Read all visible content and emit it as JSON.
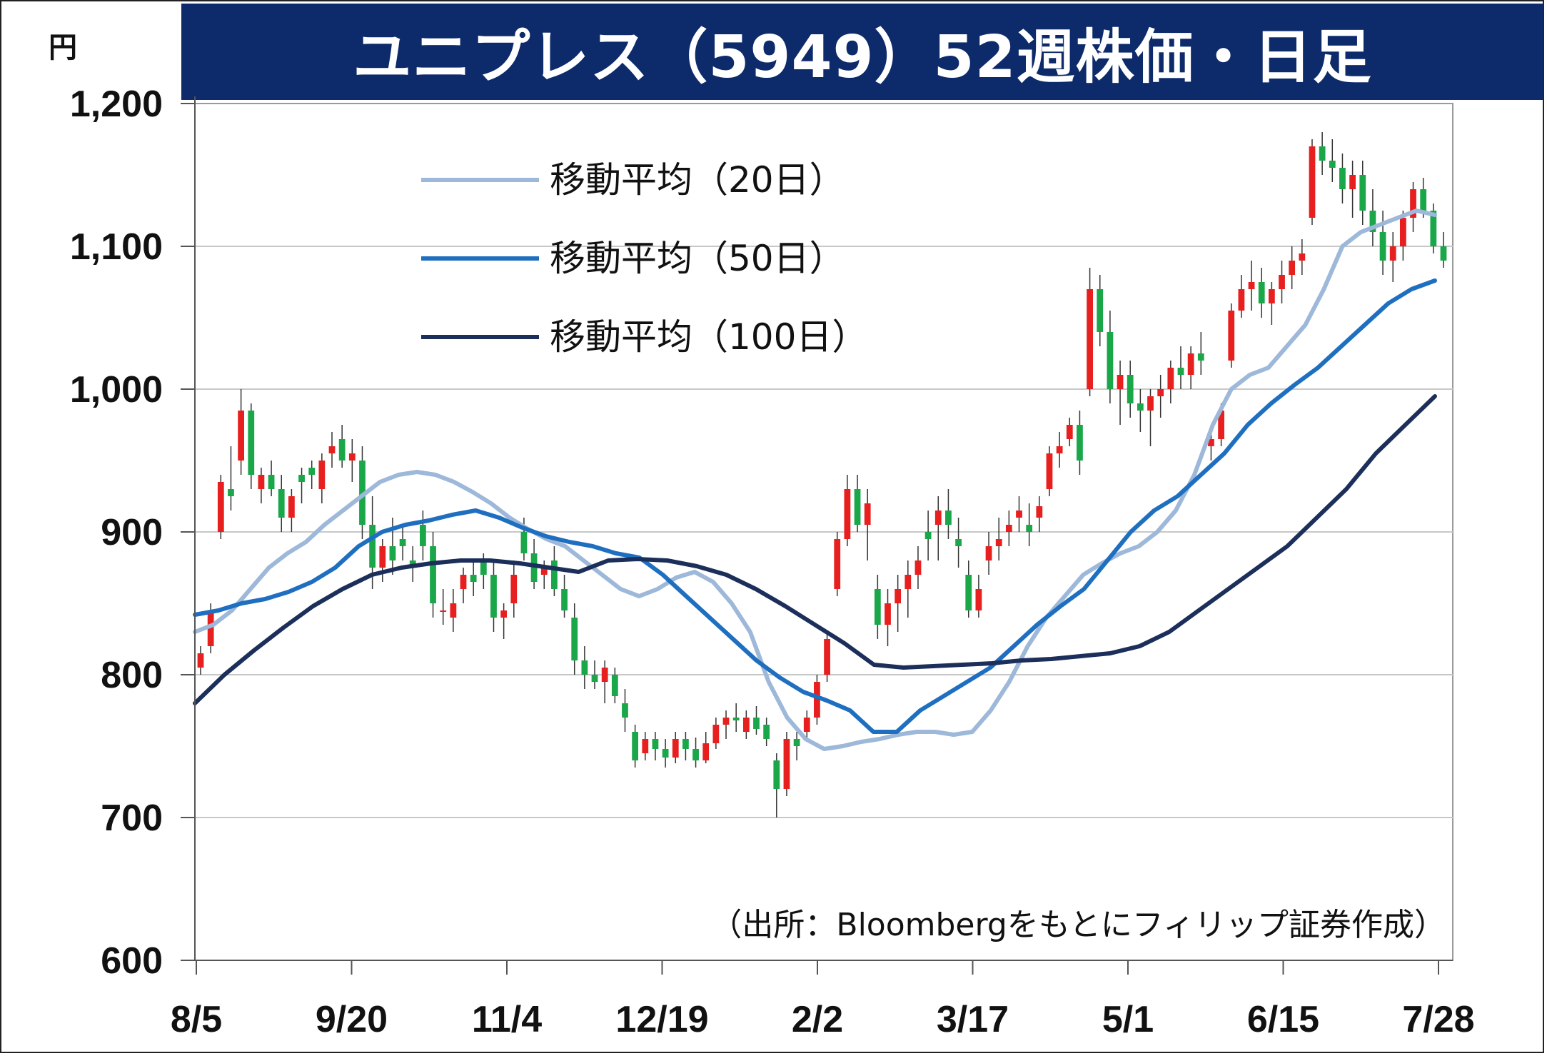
{
  "title": "ユニプレス（5949）52週株価・日足",
  "chart_data": {
    "type": "candlestick",
    "title": "ユニプレス（5949）52週株価・日足",
    "y_unit": "円",
    "ylim": [
      600,
      1200
    ],
    "yticks": [
      600,
      700,
      800,
      900,
      1000,
      1100,
      1200
    ],
    "ytick_labels": [
      "600",
      "700",
      "800",
      "900",
      "1,000",
      "1,100",
      "1,200"
    ],
    "xtick_labels": [
      "8/5",
      "9/20",
      "11/4",
      "12/19",
      "2/2",
      "3/17",
      "5/1",
      "6/15",
      "7/28"
    ],
    "grid": true,
    "legend_position": "top-left",
    "source_note": "（出所：Bloombergをもとにフィリップ証券作成）",
    "colors": {
      "up": "#e81f1f",
      "down": "#1aa74a",
      "ma20": "#9db8d9",
      "ma50": "#1f6fc0",
      "ma100": "#1b2f5a",
      "title_bg": "#0d2a6b",
      "grid": "#c8c8c8"
    },
    "series": [
      {
        "name": "移動平均（20日）",
        "values": [
          830,
          835,
          845,
          860,
          875,
          885,
          893,
          905,
          915,
          925,
          935,
          940,
          942,
          940,
          935,
          928,
          920,
          910,
          902,
          895,
          890,
          880,
          870,
          860,
          855,
          860,
          868,
          872,
          865,
          850,
          830,
          795,
          770,
          755,
          748,
          750,
          753,
          755,
          758,
          760,
          760,
          758,
          760,
          775,
          795,
          820,
          840,
          855,
          870,
          878,
          885,
          890,
          900,
          915,
          940,
          975,
          1000,
          1010,
          1015,
          1030,
          1045,
          1070,
          1100,
          1110,
          1115,
          1120,
          1125,
          1122
        ]
      },
      {
        "name": "移動平均（50日）",
        "values": [
          842,
          845,
          850,
          853,
          858,
          865,
          875,
          890,
          900,
          905,
          908,
          912,
          915,
          910,
          903,
          897,
          893,
          890,
          885,
          882,
          870,
          855,
          840,
          825,
          810,
          798,
          788,
          782,
          775,
          760,
          760,
          775,
          785,
          795,
          805,
          820,
          835,
          848,
          860,
          880,
          900,
          915,
          925,
          940,
          955,
          975,
          990,
          1003,
          1015,
          1030,
          1045,
          1060,
          1070,
          1076
        ]
      },
      {
        "name": "移動平均（100日）",
        "values": [
          780,
          800,
          817,
          833,
          848,
          860,
          870,
          875,
          878,
          880,
          880,
          878,
          875,
          872,
          880,
          881,
          880,
          876,
          870,
          860,
          848,
          835,
          822,
          807,
          805,
          806,
          807,
          808,
          810,
          811,
          813,
          815,
          820,
          830,
          845,
          860,
          875,
          890,
          910,
          930,
          955,
          975,
          995
        ]
      }
    ],
    "candles_ohlc": [
      [
        805,
        820,
        800,
        815
      ],
      [
        820,
        850,
        815,
        845
      ],
      [
        900,
        940,
        895,
        935
      ],
      [
        930,
        960,
        915,
        925
      ],
      [
        950,
        1000,
        940,
        985
      ],
      [
        985,
        990,
        930,
        940
      ],
      [
        930,
        945,
        920,
        940
      ],
      [
        940,
        950,
        925,
        930
      ],
      [
        930,
        940,
        900,
        910
      ],
      [
        910,
        930,
        900,
        925
      ],
      [
        940,
        945,
        920,
        935
      ],
      [
        945,
        950,
        930,
        940
      ],
      [
        930,
        955,
        920,
        950
      ],
      [
        955,
        970,
        945,
        960
      ],
      [
        965,
        975,
        945,
        950
      ],
      [
        950,
        965,
        935,
        955
      ],
      [
        950,
        960,
        895,
        905
      ],
      [
        905,
        925,
        860,
        875
      ],
      [
        875,
        895,
        865,
        890
      ],
      [
        890,
        910,
        870,
        880
      ],
      [
        895,
        905,
        880,
        890
      ],
      [
        880,
        890,
        865,
        875
      ],
      [
        905,
        915,
        880,
        890
      ],
      [
        890,
        900,
        840,
        850
      ],
      [
        845,
        860,
        835,
        845
      ],
      [
        840,
        860,
        830,
        850
      ],
      [
        860,
        875,
        850,
        870
      ],
      [
        870,
        880,
        855,
        865
      ],
      [
        880,
        885,
        860,
        870
      ],
      [
        870,
        880,
        830,
        840
      ],
      [
        840,
        850,
        825,
        845
      ],
      [
        850,
        880,
        840,
        870
      ],
      [
        900,
        910,
        880,
        885
      ],
      [
        885,
        895,
        860,
        865
      ],
      [
        870,
        880,
        860,
        875
      ],
      [
        880,
        890,
        855,
        860
      ],
      [
        860,
        870,
        840,
        845
      ],
      [
        840,
        850,
        800,
        810
      ],
      [
        810,
        820,
        790,
        800
      ],
      [
        800,
        810,
        790,
        795
      ],
      [
        795,
        810,
        780,
        805
      ],
      [
        800,
        805,
        780,
        785
      ],
      [
        780,
        790,
        760,
        770
      ],
      [
        760,
        765,
        735,
        740
      ],
      [
        745,
        760,
        740,
        755
      ],
      [
        755,
        760,
        740,
        748
      ],
      [
        748,
        755,
        735,
        742
      ],
      [
        742,
        760,
        738,
        755
      ],
      [
        755,
        760,
        740,
        748
      ],
      [
        748,
        756,
        735,
        740
      ],
      [
        740,
        760,
        738,
        752
      ],
      [
        752,
        770,
        748,
        765
      ],
      [
        765,
        775,
        755,
        770
      ],
      [
        770,
        780,
        760,
        768
      ],
      [
        760,
        775,
        755,
        770
      ],
      [
        770,
        778,
        758,
        762
      ],
      [
        765,
        770,
        750,
        755
      ],
      [
        740,
        745,
        700,
        720
      ],
      [
        720,
        760,
        715,
        755
      ],
      [
        755,
        760,
        740,
        750
      ],
      [
        760,
        775,
        755,
        770
      ],
      [
        770,
        800,
        765,
        795
      ],
      [
        800,
        830,
        795,
        825
      ],
      [
        860,
        900,
        855,
        895
      ],
      [
        895,
        940,
        890,
        930
      ],
      [
        930,
        940,
        900,
        905
      ],
      [
        905,
        930,
        880,
        920
      ],
      [
        860,
        870,
        825,
        835
      ],
      [
        835,
        860,
        820,
        850
      ],
      [
        850,
        870,
        830,
        860
      ],
      [
        860,
        880,
        840,
        870
      ],
      [
        870,
        890,
        860,
        880
      ],
      [
        900,
        915,
        880,
        895
      ],
      [
        905,
        925,
        880,
        915
      ],
      [
        915,
        930,
        895,
        905
      ],
      [
        895,
        910,
        875,
        890
      ],
      [
        870,
        880,
        840,
        845
      ],
      [
        845,
        870,
        840,
        860
      ],
      [
        880,
        900,
        870,
        890
      ],
      [
        890,
        910,
        880,
        895
      ],
      [
        900,
        915,
        890,
        905
      ],
      [
        910,
        925,
        900,
        915
      ],
      [
        905,
        920,
        890,
        900
      ],
      [
        910,
        925,
        900,
        918
      ],
      [
        930,
        960,
        925,
        955
      ],
      [
        955,
        970,
        945,
        960
      ],
      [
        965,
        980,
        960,
        975
      ],
      [
        975,
        985,
        940,
        950
      ],
      [
        1000,
        1085,
        995,
        1070
      ],
      [
        1070,
        1080,
        1030,
        1040
      ],
      [
        1040,
        1055,
        990,
        1000
      ],
      [
        1000,
        1020,
        975,
        1010
      ],
      [
        1010,
        1020,
        980,
        990
      ],
      [
        990,
        1000,
        970,
        985
      ],
      [
        985,
        1000,
        960,
        995
      ],
      [
        995,
        1010,
        980,
        1000
      ],
      [
        1000,
        1020,
        990,
        1015
      ],
      [
        1015,
        1030,
        1000,
        1010
      ],
      [
        1010,
        1030,
        1000,
        1025
      ],
      [
        1025,
        1040,
        1010,
        1020
      ],
      [
        960,
        975,
        950,
        965
      ],
      [
        965,
        990,
        960,
        985
      ],
      [
        1020,
        1060,
        1015,
        1055
      ],
      [
        1055,
        1080,
        1050,
        1070
      ],
      [
        1070,
        1090,
        1055,
        1075
      ],
      [
        1075,
        1085,
        1050,
        1060
      ],
      [
        1060,
        1075,
        1045,
        1070
      ],
      [
        1070,
        1090,
        1060,
        1080
      ],
      [
        1080,
        1100,
        1070,
        1090
      ],
      [
        1090,
        1105,
        1080,
        1095
      ],
      [
        1120,
        1175,
        1115,
        1170
      ],
      [
        1170,
        1180,
        1150,
        1160
      ],
      [
        1160,
        1175,
        1145,
        1155
      ],
      [
        1155,
        1165,
        1130,
        1140
      ],
      [
        1140,
        1160,
        1120,
        1150
      ],
      [
        1150,
        1160,
        1115,
        1125
      ],
      [
        1125,
        1140,
        1100,
        1110
      ],
      [
        1110,
        1125,
        1080,
        1090
      ],
      [
        1090,
        1110,
        1075,
        1100
      ],
      [
        1100,
        1125,
        1090,
        1120
      ],
      [
        1120,
        1145,
        1110,
        1140
      ],
      [
        1140,
        1148,
        1120,
        1125
      ],
      [
        1125,
        1130,
        1095,
        1100
      ],
      [
        1100,
        1110,
        1085,
        1090
      ]
    ]
  }
}
